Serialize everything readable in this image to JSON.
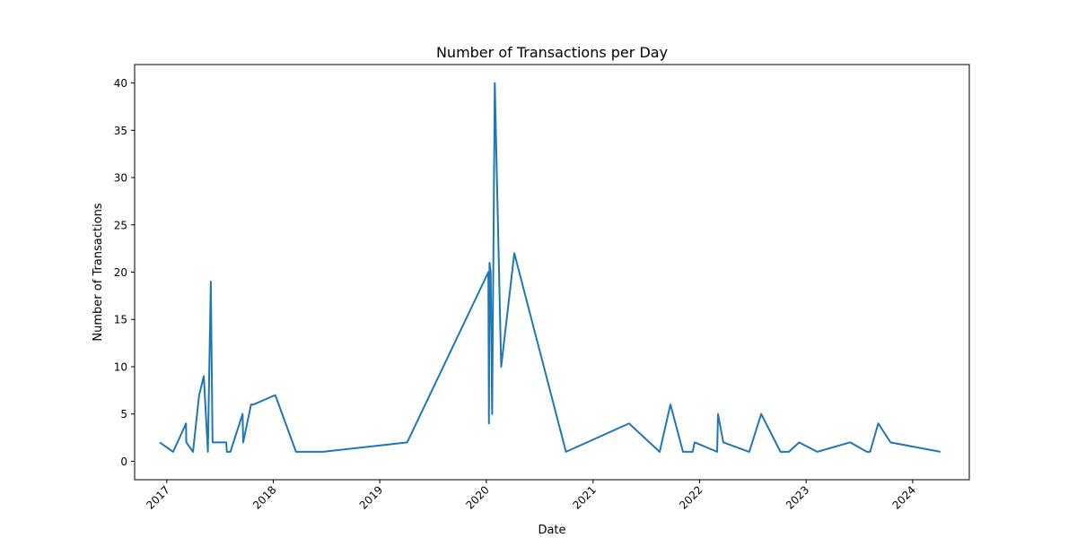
{
  "chart_data": {
    "type": "line",
    "title": "Number of Transactions per Day",
    "xlabel": "Date",
    "ylabel": "Number of Transactions",
    "xlim": [
      "2016-09-13",
      "2024-07-13"
    ],
    "ylim": [
      -1.95,
      41.95
    ],
    "x_ticks": [
      {
        "label": "2017",
        "value": "2017-01-01"
      },
      {
        "label": "2018",
        "value": "2018-01-01"
      },
      {
        "label": "2019",
        "value": "2019-01-01"
      },
      {
        "label": "2020",
        "value": "2020-01-01"
      },
      {
        "label": "2021",
        "value": "2021-01-01"
      },
      {
        "label": "2022",
        "value": "2022-01-01"
      },
      {
        "label": "2023",
        "value": "2023-01-01"
      },
      {
        "label": "2024",
        "value": "2024-01-01"
      }
    ],
    "y_ticks": [
      0,
      5,
      10,
      15,
      20,
      25,
      30,
      35,
      40
    ],
    "grid": false,
    "color": "#1f77b4",
    "series": [
      {
        "x": [
          "2016-12-08",
          "2017-01-23",
          "2017-03-08",
          "2017-03-09",
          "2017-04-01",
          "2017-04-22",
          "2017-05-08",
          "2017-05-22",
          "2017-06-01",
          "2017-06-07",
          "2017-07-24",
          "2017-07-26",
          "2017-08-01",
          "2017-08-07",
          "2017-09-18",
          "2017-09-20",
          "2017-10-17",
          "2017-10-25",
          "2018-01-08",
          "2018-03-20",
          "2018-06-20",
          "2019-04-05",
          "2020-01-08",
          "2020-01-10",
          "2020-01-12",
          "2020-01-16",
          "2020-01-21",
          "2020-01-30",
          "2020-02-21",
          "2020-04-06",
          "2020-09-30",
          "2021-05-04",
          "2021-08-17",
          "2021-09-23",
          "2021-11-05",
          "2021-12-08",
          "2021-12-15",
          "2022-03-02",
          "2022-03-05",
          "2022-03-23",
          "2022-06-20",
          "2022-07-31",
          "2022-10-05",
          "2022-11-03",
          "2022-12-08",
          "2023-02-08",
          "2023-06-01",
          "2023-07-28",
          "2023-08-08",
          "2023-09-05",
          "2023-10-17",
          "2024-04-05"
        ],
        "values": [
          2,
          1,
          4,
          2,
          1,
          7,
          9,
          1,
          19,
          2,
          2,
          1,
          1,
          1,
          5,
          2,
          6,
          6,
          7,
          1,
          1,
          2,
          20,
          4,
          21,
          20,
          5,
          40,
          10,
          22,
          1,
          4,
          1,
          6,
          1,
          1,
          2,
          1,
          5,
          2,
          1,
          5,
          1,
          1,
          2,
          1,
          2,
          1,
          1,
          4,
          2,
          1
        ]
      }
    ]
  }
}
